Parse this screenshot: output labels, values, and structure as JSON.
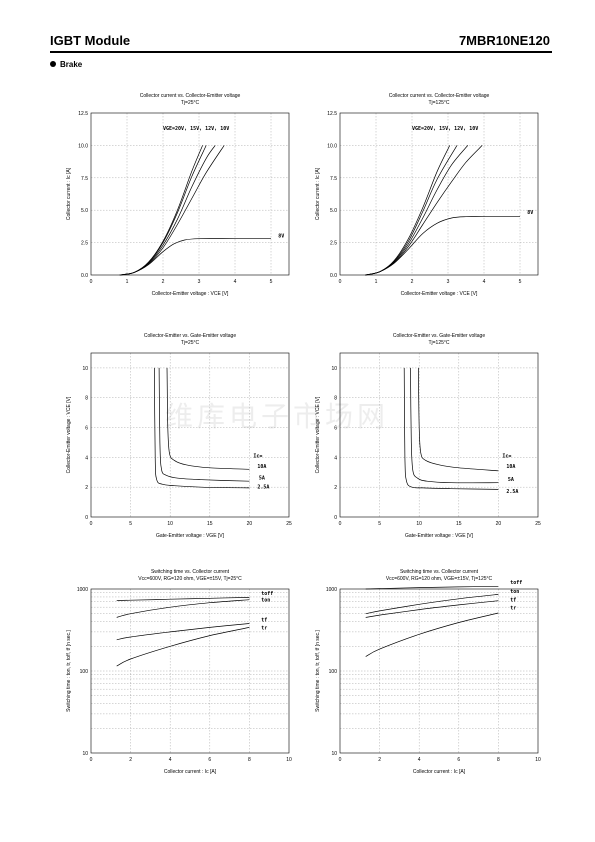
{
  "header": {
    "title": "IGBT Module",
    "part_number": "7MBR10NE120"
  },
  "section": {
    "label": "Brake"
  },
  "watermark": "维库电子市场网",
  "chart_data": [
    {
      "type": "line",
      "title": "Collector current  vs.  Collector-Emitter  voltage",
      "subtitle": "Tj=25°C",
      "xlabel": "Collector-Emitter voltage : VCE [V]",
      "ylabel": "Collector  current :  Ic [A]",
      "xlim": [
        0,
        5.5
      ],
      "ylim": [
        0,
        12.5
      ],
      "xticks": [
        0,
        1,
        2,
        3,
        4,
        5
      ],
      "yticks": [
        0.0,
        2.5,
        5.0,
        7.5,
        10.0,
        12.5
      ],
      "ytick_labels": [
        "0.0",
        "2.5",
        "5.0",
        "7.5",
        "10.0",
        "12.5"
      ],
      "log_y": false,
      "annotations": [
        {
          "text": "VGE=20V, 15V, 12V, 10V",
          "x": 2.0,
          "y": 11.2
        },
        {
          "text": "8V",
          "x": 5.2,
          "y": 2.9
        }
      ],
      "series": [
        {
          "name": "20V",
          "x": [
            0.8,
            1.2,
            1.6,
            2.0,
            2.4,
            2.8,
            3.1
          ],
          "y": [
            0,
            0.2,
            1.0,
            2.6,
            5.0,
            8.0,
            10.0
          ]
        },
        {
          "name": "15V",
          "x": [
            0.8,
            1.2,
            1.6,
            2.0,
            2.4,
            2.8,
            3.2
          ],
          "y": [
            0,
            0.2,
            0.95,
            2.5,
            4.8,
            7.6,
            10.0
          ]
        },
        {
          "name": "12V",
          "x": [
            0.8,
            1.2,
            1.6,
            2.0,
            2.4,
            2.8,
            3.2,
            3.45
          ],
          "y": [
            0,
            0.2,
            0.9,
            2.3,
            4.3,
            6.8,
            9.0,
            10.0
          ]
        },
        {
          "name": "10V",
          "x": [
            0.8,
            1.2,
            1.6,
            2.0,
            2.4,
            2.8,
            3.2,
            3.7
          ],
          "y": [
            0,
            0.2,
            0.85,
            2.1,
            3.9,
            5.9,
            7.9,
            10.0
          ]
        },
        {
          "name": "8V",
          "x": [
            0.8,
            1.2,
            1.6,
            2.0,
            2.3,
            2.6,
            3.0,
            4.0,
            5.0
          ],
          "y": [
            0,
            0.2,
            0.8,
            1.8,
            2.4,
            2.7,
            2.8,
            2.8,
            2.8
          ]
        }
      ]
    },
    {
      "type": "line",
      "title": "Collector current  vs.  Collector-Emitter  voltage",
      "subtitle": "Tj=125°C",
      "xlabel": "Collector-Emitter voltage : VCE [V]",
      "ylabel": "Collector  current :  Ic [A]",
      "xlim": [
        0,
        5.5
      ],
      "ylim": [
        0,
        12.5
      ],
      "xticks": [
        0,
        1,
        2,
        3,
        4,
        5
      ],
      "yticks": [
        0.0,
        2.5,
        5.0,
        7.5,
        10.0,
        12.5
      ],
      "ytick_labels": [
        "0.0",
        "2.5",
        "5.0",
        "7.5",
        "10.0",
        "12.5"
      ],
      "log_y": false,
      "annotations": [
        {
          "text": "VGE=20V, 15V, 12V, 10V",
          "x": 2.0,
          "y": 11.2
        },
        {
          "text": "8V",
          "x": 5.2,
          "y": 4.7
        }
      ],
      "series": [
        {
          "name": "20V",
          "x": [
            0.7,
            1.1,
            1.5,
            1.9,
            2.3,
            2.7,
            3.05
          ],
          "y": [
            0,
            0.25,
            1.1,
            2.8,
            5.2,
            8.0,
            10.0
          ]
        },
        {
          "name": "15V",
          "x": [
            0.7,
            1.1,
            1.5,
            1.9,
            2.3,
            2.7,
            3.25
          ],
          "y": [
            0,
            0.25,
            1.05,
            2.6,
            4.9,
            7.4,
            10.0
          ]
        },
        {
          "name": "12V",
          "x": [
            0.7,
            1.1,
            1.5,
            1.9,
            2.3,
            2.7,
            3.1,
            3.55
          ],
          "y": [
            0,
            0.25,
            1.0,
            2.4,
            4.4,
            6.6,
            8.5,
            10.0
          ]
        },
        {
          "name": "10V",
          "x": [
            0.7,
            1.1,
            1.5,
            1.9,
            2.3,
            2.7,
            3.1,
            3.5,
            3.95
          ],
          "y": [
            0,
            0.25,
            0.95,
            2.2,
            3.9,
            5.6,
            7.2,
            8.7,
            10.0
          ]
        },
        {
          "name": "8V",
          "x": [
            0.7,
            1.1,
            1.5,
            1.9,
            2.3,
            2.7,
            3.1,
            3.5,
            4.0,
            5.0
          ],
          "y": [
            0,
            0.25,
            0.9,
            2.0,
            3.2,
            4.0,
            4.4,
            4.5,
            4.5,
            4.5
          ]
        }
      ]
    },
    {
      "type": "line",
      "title": "Collector-Emitter  vs.  Gate-Emitter  voltage",
      "subtitle": "Tj=25°C",
      "xlabel": "Gate-Emitter  voltage : VGE [V]",
      "ylabel": "Collector-Emitter  voltage :  VCE [V]",
      "xlim": [
        0,
        25
      ],
      "ylim": [
        0,
        11
      ],
      "xticks": [
        0,
        5,
        10,
        15,
        20,
        25
      ],
      "yticks": [
        0,
        2,
        4,
        6,
        8,
        10
      ],
      "ytick_labels": [
        "0",
        "2",
        "4",
        "6",
        "8",
        "10"
      ],
      "log_y": false,
      "annotations": [
        {
          "text": "Ic=",
          "x": 20.5,
          "y": 4.0
        },
        {
          "text": "10A",
          "x": 21.0,
          "y": 3.3
        },
        {
          "text": "5A",
          "x": 21.2,
          "y": 2.5
        },
        {
          "text": "2.5A",
          "x": 21.0,
          "y": 1.9
        }
      ],
      "series": [
        {
          "name": "10A",
          "x": [
            9.6,
            9.7,
            9.9,
            10.5,
            12,
            15,
            20
          ],
          "y": [
            10,
            6,
            4.3,
            3.8,
            3.5,
            3.3,
            3.2
          ]
        },
        {
          "name": "5A",
          "x": [
            8.6,
            8.7,
            8.9,
            9.5,
            11,
            14,
            20
          ],
          "y": [
            10,
            5,
            3.2,
            2.8,
            2.6,
            2.5,
            2.4
          ]
        },
        {
          "name": "2.5A",
          "x": [
            8.0,
            8.1,
            8.3,
            9.0,
            10.5,
            14,
            20
          ],
          "y": [
            10,
            4,
            2.5,
            2.2,
            2.1,
            2.0,
            1.95
          ]
        }
      ]
    },
    {
      "type": "line",
      "title": "Collector-Emitter  vs.  Gate-Emitter  voltage",
      "subtitle": "Tj=125°C",
      "xlabel": "Gate-Emitter  voltage : VGE [V]",
      "ylabel": "Collector-Emitter  voltage :  VCE [V]",
      "xlim": [
        0,
        25
      ],
      "ylim": [
        0,
        11
      ],
      "xticks": [
        0,
        5,
        10,
        15,
        20,
        25
      ],
      "yticks": [
        0,
        2,
        4,
        6,
        8,
        10
      ],
      "ytick_labels": [
        "0",
        "2",
        "4",
        "6",
        "8",
        "10"
      ],
      "log_y": false,
      "annotations": [
        {
          "text": "Ic=",
          "x": 20.5,
          "y": 4.0
        },
        {
          "text": "10A",
          "x": 21.0,
          "y": 3.3
        },
        {
          "text": "5A",
          "x": 21.2,
          "y": 2.4
        },
        {
          "text": "2.5A",
          "x": 21.0,
          "y": 1.6
        }
      ],
      "series": [
        {
          "name": "10A",
          "x": [
            9.9,
            10.0,
            10.2,
            10.8,
            12.5,
            15,
            20
          ],
          "y": [
            10,
            6,
            4.3,
            3.8,
            3.5,
            3.3,
            3.1
          ]
        },
        {
          "name": "5A",
          "x": [
            8.9,
            9.0,
            9.2,
            9.8,
            11,
            14,
            20
          ],
          "y": [
            10,
            5,
            3.1,
            2.6,
            2.4,
            2.3,
            2.3
          ]
        },
        {
          "name": "2.5A",
          "x": [
            8.1,
            8.2,
            8.4,
            9.1,
            10.5,
            14,
            20
          ],
          "y": [
            10,
            4,
            2.4,
            2.0,
            1.95,
            1.9,
            1.85
          ]
        }
      ]
    },
    {
      "type": "line",
      "title": "Switching time  vs. Collector current",
      "subtitle": "Vcc=600V, RG=120 ohm, VGE=±15V, Tj=25°C",
      "xlabel": "Collector  current :  Ic [A]",
      "ylabel": "Switching time :  ton, tr, toff, tf  [n sec.]",
      "xlim": [
        0,
        10
      ],
      "ylim": [
        10,
        1000
      ],
      "xticks": [
        0,
        2,
        4,
        6,
        8,
        10
      ],
      "yticks": [
        10,
        100,
        1000
      ],
      "ytick_labels": [
        "10",
        "100",
        "1000"
      ],
      "log_y": true,
      "annotations": [
        {
          "text": "toff",
          "x": 8.6,
          "y": 840
        },
        {
          "text": "ton",
          "x": 8.6,
          "y": 700
        },
        {
          "text": "tf",
          "x": 8.6,
          "y": 400
        },
        {
          "text": "tr",
          "x": 8.6,
          "y": 320
        }
      ],
      "series": [
        {
          "name": "toff",
          "x": [
            1.3,
            2,
            4,
            6,
            8
          ],
          "y": [
            720,
            730,
            750,
            770,
            790
          ]
        },
        {
          "name": "ton",
          "x": [
            1.3,
            2,
            4,
            6,
            8
          ],
          "y": [
            450,
            500,
            600,
            680,
            740
          ]
        },
        {
          "name": "tf",
          "x": [
            1.3,
            2,
            4,
            6,
            8
          ],
          "y": [
            240,
            260,
            300,
            340,
            380
          ]
        },
        {
          "name": "tr",
          "x": [
            1.3,
            2,
            4,
            6,
            8
          ],
          "y": [
            115,
            140,
            200,
            270,
            340
          ]
        }
      ]
    },
    {
      "type": "line",
      "title": "Switching time  vs. Collector current",
      "subtitle": "Vcc=600V, RG=120 ohm, VGE=±15V, Tj=125°C",
      "xlabel": "Collector  current :  Ic [A]",
      "ylabel": "Switching time :  ton, tr, toff, tf  [n sec.]",
      "xlim": [
        0,
        10
      ],
      "ylim": [
        10,
        1000
      ],
      "xticks": [
        0,
        2,
        4,
        6,
        8,
        10
      ],
      "yticks": [
        10,
        100,
        1000
      ],
      "ytick_labels": [
        "10",
        "100",
        "1000"
      ],
      "log_y": true,
      "annotations": [
        {
          "text": "toff",
          "x": 8.6,
          "y": 1150
        },
        {
          "text": "ton",
          "x": 8.6,
          "y": 900
        },
        {
          "text": "tf",
          "x": 8.6,
          "y": 700
        },
        {
          "text": "tr",
          "x": 8.6,
          "y": 560
        }
      ],
      "series": [
        {
          "name": "toff",
          "x": [
            1.3,
            2,
            4,
            6,
            8
          ],
          "y": [
            1000,
            1010,
            1040,
            1060,
            1080
          ]
        },
        {
          "name": "ton",
          "x": [
            1.3,
            2,
            4,
            6,
            8
          ],
          "y": [
            500,
            540,
            650,
            760,
            860
          ]
        },
        {
          "name": "tf",
          "x": [
            1.3,
            2,
            4,
            6,
            8
          ],
          "y": [
            450,
            480,
            560,
            640,
            720
          ]
        },
        {
          "name": "tr",
          "x": [
            1.3,
            2,
            4,
            6,
            8
          ],
          "y": [
            150,
            185,
            280,
            390,
            510
          ]
        }
      ]
    }
  ]
}
